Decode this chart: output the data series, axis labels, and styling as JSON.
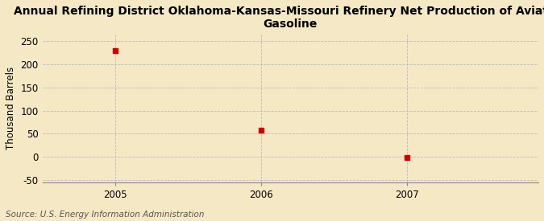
{
  "title": "Annual Refining District Oklahoma-Kansas-Missouri Refinery Net Production of Aviation\nGasoline",
  "years": [
    2005,
    2006,
    2007
  ],
  "values": [
    229,
    58,
    -1
  ],
  "ylabel": "Thousand Barrels",
  "source": "Source: U.S. Energy Information Administration",
  "xlim": [
    2004.5,
    2007.9
  ],
  "ylim": [
    -55,
    265
  ],
  "yticks": [
    -50,
    0,
    50,
    100,
    150,
    200,
    250
  ],
  "xticks": [
    2005,
    2006,
    2007
  ],
  "background_color": "#f5e8c4",
  "plot_bg_color": "#f5e8c4",
  "marker_color": "#cc0000",
  "grid_color": "#bbbbbb",
  "title_fontsize": 10,
  "label_fontsize": 8.5,
  "tick_fontsize": 8.5,
  "source_fontsize": 7.5
}
